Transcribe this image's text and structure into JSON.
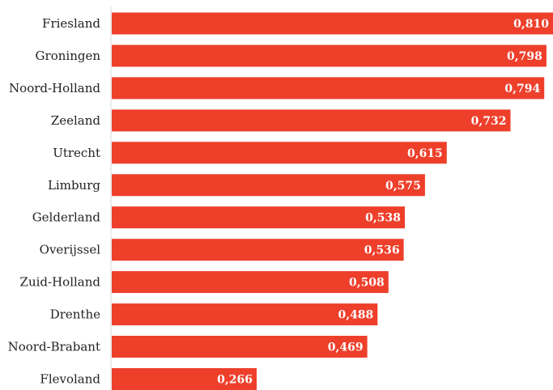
{
  "chart_data": {
    "type": "bar",
    "orientation": "horizontal",
    "categories": [
      "Friesland",
      "Groningen",
      "Noord-Holland",
      "Zeeland",
      "Utrecht",
      "Limburg",
      "Gelderland",
      "Overijssel",
      "Zuid-Holland",
      "Drenthe",
      "Noord-Brabant",
      "Flevoland"
    ],
    "values": [
      0.81,
      0.798,
      0.794,
      0.732,
      0.615,
      0.575,
      0.538,
      0.536,
      0.508,
      0.488,
      0.469,
      0.266
    ],
    "value_labels": [
      "0,810",
      "0,798",
      "0,794",
      "0,732",
      "0,615",
      "0,575",
      "0,538",
      "0,536",
      "0,508",
      "0,488",
      "0,469",
      "0,266"
    ],
    "xlim": [
      0,
      0.81
    ],
    "grid": false,
    "legend": "none",
    "bar_color": "#ee3f2b",
    "axis_line_color": "#d9d9d9"
  }
}
